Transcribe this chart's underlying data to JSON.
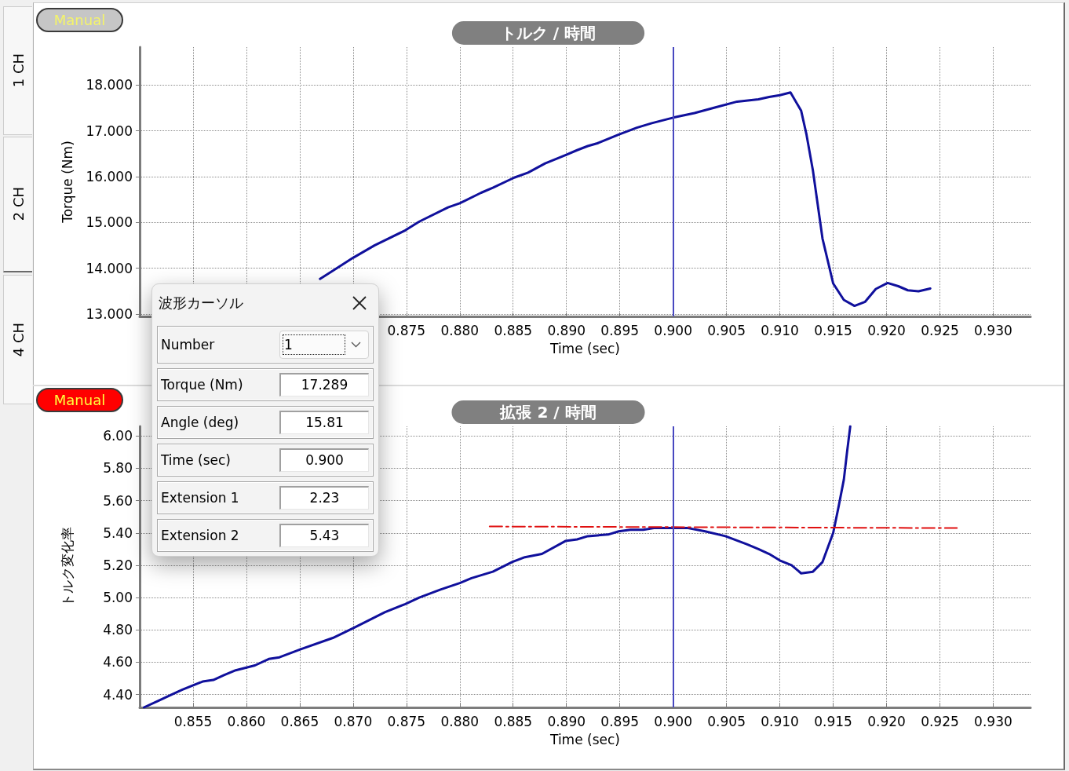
{
  "chart_data": [
    {
      "type": "line",
      "title": "トルク / 時間",
      "xlabel": "Time (sec)",
      "ylabel": "Torque (Nm)",
      "annotations": [
        "Manual"
      ],
      "grid": true,
      "marker": "none",
      "xlim": [
        0.85,
        0.9335
      ],
      "xticks": [
        {
          "value": 0.855,
          "label": null
        },
        {
          "value": 0.86,
          "label": null
        },
        {
          "value": 0.865,
          "label": null
        },
        {
          "value": 0.87,
          "label": null
        },
        0.875,
        {
          "value": 0.88,
          "label": "0.880"
        },
        0.885,
        {
          "value": 0.89,
          "label": "0.890"
        },
        0.895,
        {
          "value": 0.9,
          "label": "0.900"
        },
        0.905,
        {
          "value": 0.91,
          "label": "0.910"
        },
        0.915,
        {
          "value": 0.92,
          "label": "0.920"
        },
        0.925,
        {
          "value": 0.93,
          "label": "0.930"
        }
      ],
      "ylim": [
        12.95,
        18.83
      ],
      "yticks": [
        {
          "value": 13,
          "label": "13.000"
        },
        {
          "value": 14,
          "label": "14.000"
        },
        {
          "value": 15,
          "label": "15.000"
        },
        {
          "value": 16,
          "label": "16.000"
        },
        {
          "value": 17,
          "label": "17.000"
        },
        {
          "value": 18,
          "label": "18.000"
        }
      ],
      "ref_lines": [
        {
          "axis": "x",
          "value": 0.9,
          "color": "#4848c0"
        }
      ],
      "color": "#10109c",
      "x": [
        0.8669,
        0.8682,
        0.87,
        0.872,
        0.8749,
        0.8762,
        0.8789,
        0.88,
        0.882,
        0.8831,
        0.8851,
        0.8864,
        0.888,
        0.8899,
        0.891,
        0.892,
        0.8929,
        0.8949,
        0.8966,
        0.898,
        0.9,
        0.902,
        0.9039,
        0.906,
        0.908,
        0.909,
        0.91,
        0.911,
        0.912,
        0.9125,
        0.9131,
        0.914,
        0.915,
        0.916,
        0.917,
        0.918,
        0.919,
        0.9201,
        0.9211,
        0.922,
        0.923,
        0.9241
      ],
      "values": [
        13.77,
        13.96,
        14.23,
        14.5,
        14.83,
        15.02,
        15.33,
        15.42,
        15.65,
        15.76,
        15.98,
        16.09,
        16.29,
        16.47,
        16.58,
        16.67,
        16.73,
        16.92,
        17.07,
        17.17,
        17.29,
        17.39,
        17.51,
        17.64,
        17.69,
        17.74,
        17.78,
        17.84,
        17.44,
        16.92,
        16.14,
        14.65,
        13.67,
        13.31,
        13.18,
        13.27,
        13.55,
        13.68,
        13.61,
        13.52,
        13.5,
        13.56
      ]
    },
    {
      "type": "line",
      "title": "拡張 2 / 時間",
      "xlabel": "Time (sec)",
      "ylabel": "トルク変化率",
      "annotations": [
        "Manual"
      ],
      "grid": true,
      "marker": "none",
      "xlim": [
        0.85,
        0.9335
      ],
      "xticks": [
        0.855,
        {
          "value": 0.86,
          "label": "0.860"
        },
        0.865,
        {
          "value": 0.87,
          "label": "0.870"
        },
        0.875,
        {
          "value": 0.88,
          "label": "0.880"
        },
        0.885,
        {
          "value": 0.89,
          "label": "0.890"
        },
        0.895,
        {
          "value": 0.9,
          "label": "0.900"
        },
        0.905,
        {
          "value": 0.91,
          "label": "0.910"
        },
        0.915,
        {
          "value": 0.92,
          "label": "0.920"
        },
        0.925,
        {
          "value": 0.93,
          "label": "0.930"
        }
      ],
      "ylim": [
        4.32,
        6.06
      ],
      "yticks": [
        {
          "value": 4.4,
          "label": "4.40"
        },
        {
          "value": 4.6,
          "label": "4.60"
        },
        {
          "value": 4.8,
          "label": "4.80"
        },
        {
          "value": 5,
          "label": "5.00"
        },
        {
          "value": 5.2,
          "label": "5.20"
        },
        {
          "value": 5.4,
          "label": "5.40"
        },
        {
          "value": 5.6,
          "label": "5.60"
        },
        {
          "value": 5.8,
          "label": "5.80"
        },
        {
          "value": 6,
          "label": "6.00"
        }
      ],
      "ref_lines": [
        {
          "axis": "x",
          "value": 0.9,
          "color": "#4848c0"
        }
      ],
      "series": [
        {
          "color": "#10109c",
          "x": [
            0.8504,
            0.8517,
            0.853,
            0.854,
            0.8559,
            0.8569,
            0.8579,
            0.859,
            0.8608,
            0.8621,
            0.8631,
            0.8651,
            0.8681,
            0.87,
            0.873,
            0.8749,
            0.8762,
            0.8782,
            0.88,
            0.8811,
            0.8831,
            0.8849,
            0.8861,
            0.8877,
            0.8899,
            0.891,
            0.892,
            0.8939,
            0.8949,
            0.896,
            0.8972,
            0.8982,
            0.9,
            0.9014,
            0.903,
            0.9049,
            0.9069,
            0.908,
            0.909,
            0.91,
            0.9111,
            0.912,
            0.9131,
            0.914,
            0.915,
            0.9155,
            0.916,
            0.9163,
            0.9166
          ],
          "values": [
            4.32,
            4.36,
            4.4,
            4.43,
            4.48,
            4.49,
            4.52,
            4.55,
            4.58,
            4.62,
            4.63,
            4.68,
            4.75,
            4.81,
            4.91,
            4.96,
            5.0,
            5.05,
            5.09,
            5.12,
            5.16,
            5.22,
            5.25,
            5.27,
            5.35,
            5.36,
            5.38,
            5.39,
            5.41,
            5.42,
            5.42,
            5.43,
            5.43,
            5.43,
            5.41,
            5.38,
            5.33,
            5.3,
            5.27,
            5.23,
            5.2,
            5.15,
            5.16,
            5.22,
            5.4,
            5.56,
            5.73,
            5.9,
            6.06
          ]
        },
        {
          "color": "#e01010",
          "line_style": "dashdot",
          "x": [
            0.8828,
            0.9266
          ],
          "values": [
            5.44,
            5.43
          ]
        }
      ]
    },
    {
      "type": "other",
      "title": "波形カーソル",
      "annotations": [
        "Number",
        "1",
        "Torque (Nm)",
        "17.289",
        "Angle (deg)",
        "15.81",
        "Time (sec)",
        "0.900",
        "Extension 1",
        "2.23",
        "Extension 2",
        "5.43"
      ]
    },
    {
      "type": "other",
      "annotations": [
        "1 CH",
        "2 CH",
        "4 CH"
      ]
    }
  ]
}
